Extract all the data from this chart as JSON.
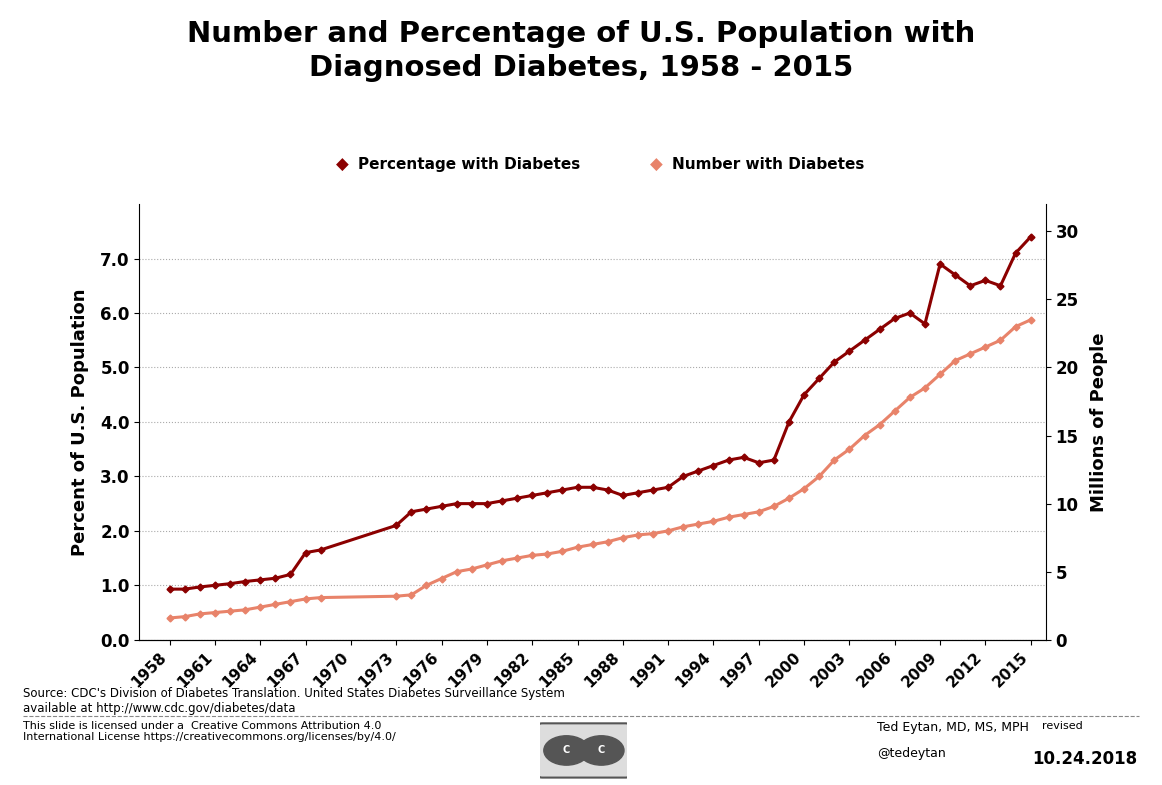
{
  "title": "Number and Percentage of U.S. Population with\nDiagnosed Diabetes, 1958 - 2015",
  "ylabel_left": "Percent of U.S. Population",
  "ylabel_right": "Millions of People",
  "legend_pct": "Percentage with Diabetes",
  "legend_num": "Number with Diabetes",
  "source_text": "Source: CDC's Division of Diabetes Translation. United States Diabetes Surveillance System\navailable at http://www.cdc.gov/diabetes/data",
  "footer_left": "This slide is licensed under a  Creative Commons Attribution 4.0\nInternational License https://creativecommons.org/licenses/by/4.0/",
  "footer_right1": "Ted Eytan, MD, MS, MPH",
  "footer_right2": "@tedeytan",
  "footer_revised": "revised",
  "footer_date": "10.24.2018",
  "color_pct": "#8B0000",
  "color_num": "#E8836A",
  "bg_color": "#FFFFFF",
  "years_pct": [
    1958,
    1959,
    1960,
    1961,
    1962,
    1963,
    1964,
    1965,
    1966,
    1967,
    1968,
    1973,
    1974,
    1975,
    1976,
    1977,
    1978,
    1979,
    1980,
    1981,
    1982,
    1983,
    1984,
    1985,
    1986,
    1987,
    1988,
    1989,
    1990,
    1991,
    1992,
    1993,
    1994,
    1995,
    1996,
    1997,
    1998,
    1999,
    2000,
    2001,
    2002,
    2003,
    2004,
    2005,
    2006,
    2007,
    2008,
    2009,
    2010,
    2011,
    2012,
    2013,
    2014,
    2015
  ],
  "values_pct": [
    0.93,
    0.93,
    0.97,
    1.0,
    1.03,
    1.07,
    1.1,
    1.13,
    1.2,
    1.6,
    1.65,
    2.1,
    2.35,
    2.4,
    2.45,
    2.5,
    2.5,
    2.5,
    2.55,
    2.6,
    2.65,
    2.7,
    2.75,
    2.8,
    2.8,
    2.75,
    2.65,
    2.7,
    2.75,
    2.8,
    3.0,
    3.1,
    3.2,
    3.3,
    3.35,
    3.25,
    3.3,
    4.0,
    4.5,
    4.8,
    5.1,
    5.3,
    5.5,
    5.7,
    5.9,
    6.0,
    5.8,
    6.9,
    6.7,
    6.5,
    6.6,
    6.5,
    7.1,
    7.4
  ],
  "years_num": [
    1958,
    1959,
    1960,
    1961,
    1962,
    1963,
    1964,
    1965,
    1966,
    1967,
    1968,
    1973,
    1974,
    1975,
    1976,
    1977,
    1978,
    1979,
    1980,
    1981,
    1982,
    1983,
    1984,
    1985,
    1986,
    1987,
    1988,
    1989,
    1990,
    1991,
    1992,
    1993,
    1994,
    1995,
    1996,
    1997,
    1998,
    1999,
    2000,
    2001,
    2002,
    2003,
    2004,
    2005,
    2006,
    2007,
    2008,
    2009,
    2010,
    2011,
    2012,
    2013,
    2014,
    2015
  ],
  "values_num": [
    1.6,
    1.7,
    1.9,
    2.0,
    2.1,
    2.2,
    2.4,
    2.6,
    2.8,
    3.0,
    3.1,
    3.2,
    3.3,
    4.0,
    4.5,
    5.0,
    5.2,
    5.5,
    5.8,
    6.0,
    6.2,
    6.3,
    6.5,
    6.8,
    7.0,
    7.2,
    7.5,
    7.7,
    7.8,
    8.0,
    8.3,
    8.5,
    8.7,
    9.0,
    9.2,
    9.4,
    9.8,
    10.4,
    11.1,
    12.0,
    13.2,
    14.0,
    15.0,
    15.8,
    16.8,
    17.8,
    18.5,
    19.5,
    20.5,
    21.0,
    21.5,
    22.0,
    23.0,
    23.5
  ],
  "ylim_left": [
    0.0,
    8.0
  ],
  "ylim_right": [
    0,
    32
  ],
  "yticks_left": [
    0.0,
    1.0,
    2.0,
    3.0,
    4.0,
    5.0,
    6.0,
    7.0
  ],
  "yticks_right": [
    0,
    5,
    10,
    15,
    20,
    25,
    30
  ],
  "xtick_years": [
    1958,
    1961,
    1964,
    1967,
    1970,
    1973,
    1976,
    1979,
    1982,
    1985,
    1988,
    1991,
    1994,
    1997,
    2000,
    2003,
    2006,
    2009,
    2012,
    2015
  ],
  "xlim": [
    1956,
    2016
  ]
}
